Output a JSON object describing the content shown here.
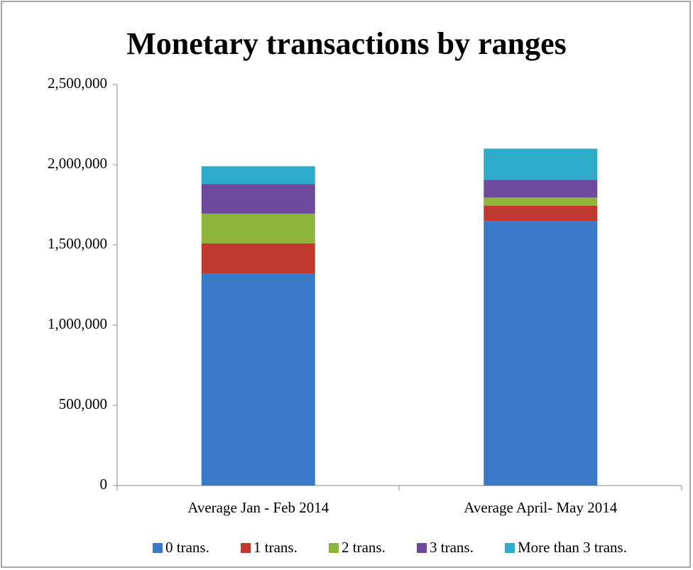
{
  "chart_data": {
    "type": "stacked_bar",
    "title": "Monetary transactions by ranges",
    "categories": [
      "Average Jan - Feb 2014",
      "Average April- May 2014"
    ],
    "series": [
      {
        "name": "0 trans.",
        "color": "#3a78c8",
        "values": [
          1320000,
          1650000
        ]
      },
      {
        "name": "1 trans.",
        "color": "#c0392f",
        "values": [
          190000,
          95000
        ]
      },
      {
        "name": "2 trans.",
        "color": "#8db53a",
        "values": [
          185000,
          50000
        ]
      },
      {
        "name": "3 trans.",
        "color": "#6e4a9c",
        "values": [
          185000,
          110000
        ]
      },
      {
        "name": "More than 3 trans.",
        "color": "#2eabc9",
        "values": [
          110000,
          195000
        ]
      }
    ],
    "ylim": [
      0,
      2500000
    ],
    "yticks": [
      0,
      {
        "value": 500000,
        "label": "500,000"
      },
      {
        "value": 1000000,
        "label": "1,000,000"
      },
      {
        "value": 1500000,
        "label": "1,500,000"
      },
      {
        "value": 2000000,
        "label": "2,000,000"
      },
      {
        "value": 2500000,
        "label": "2,500,000"
      }
    ],
    "legend": "bottom"
  }
}
